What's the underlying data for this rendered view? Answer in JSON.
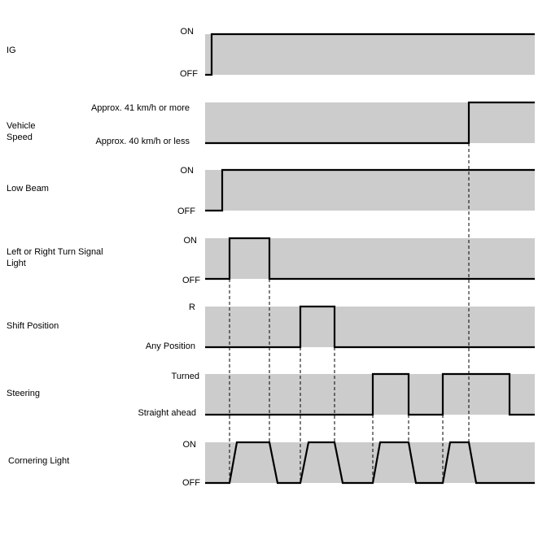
{
  "signals": [
    {
      "id": "ig",
      "name": "IG",
      "high_label": "ON",
      "low_label": "OFF",
      "waveform": "off-then-on"
    },
    {
      "id": "vehicle-speed",
      "name": "Vehicle\nSpeed",
      "high_label": "Approx. 41 km/h or more",
      "low_label": "Approx. 40 km/h or less",
      "waveform": "low-until-late-then-high"
    },
    {
      "id": "low-beam",
      "name": "Low Beam",
      "high_label": "ON",
      "low_label": "OFF",
      "waveform": "off-then-on"
    },
    {
      "id": "turn-signal",
      "name": "Left or Right Turn Signal\nLight",
      "high_label": "ON",
      "low_label": "OFF",
      "waveform": "single-pulse"
    },
    {
      "id": "shift-position",
      "name": "Shift Position",
      "high_label": "R",
      "low_label": "Any Position",
      "waveform": "single-pulse"
    },
    {
      "id": "steering",
      "name": "Steering",
      "high_label": "Turned",
      "low_label": "Straight ahead",
      "waveform": "two-pulses"
    },
    {
      "id": "cornering-light",
      "name": "Cornering Light",
      "high_label": "ON",
      "low_label": "OFF",
      "waveform": "four-ramped-pulses"
    }
  ],
  "colors": {
    "band": "#cccccc",
    "line": "#000000"
  }
}
